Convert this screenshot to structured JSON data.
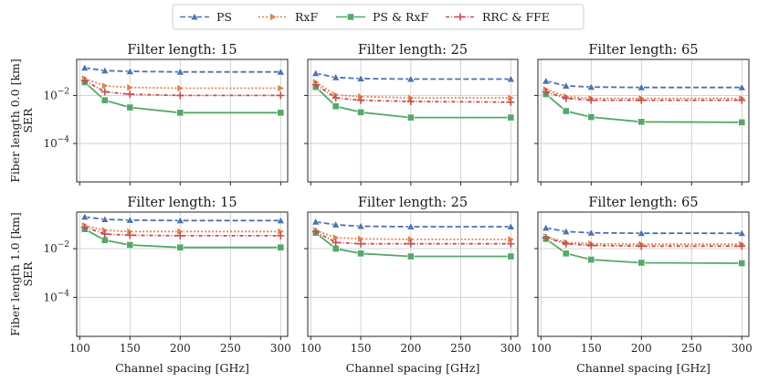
{
  "chart_data": {
    "type": "line",
    "legend": {
      "placement": "top-center",
      "entries": [
        {
          "name": "PS",
          "color": "#4c72b0",
          "dash": "6,3",
          "marker": "triangle-up"
        },
        {
          "name": "RxF",
          "color": "#dd8452",
          "dash": "2,2",
          "marker": "triangle-right"
        },
        {
          "name": "PS & RxF",
          "color": "#55a868",
          "dash": "",
          "marker": "square"
        },
        {
          "name": "RRC & FFE",
          "color": "#c44e52",
          "dash": "4,2,1,2",
          "marker": "plus"
        }
      ]
    },
    "x": [
      105,
      125,
      150,
      200,
      300
    ],
    "xlabel": "Channel spacing [GHz]",
    "ylabel": "SER",
    "xticks": [
      100,
      150,
      200,
      250,
      300
    ],
    "xtick_labels": [
      "100",
      "150",
      "200",
      "250",
      "300"
    ],
    "ytick_labels": [
      {
        "base": "10",
        "exp": "−2",
        "value": -2
      },
      {
        "base": "10",
        "exp": "−4",
        "value": -4
      }
    ],
    "xlim": [
      97,
      307
    ],
    "ylim_log10": [
      -5.6,
      -0.5
    ],
    "row_labels": [
      "Fiber length 0.0 [km]",
      "Fiber length 1.0 [km]"
    ],
    "panels": [
      {
        "title": "Filter length: 15",
        "row": 0,
        "col": 0,
        "series": [
          {
            "name": "PS",
            "log10": [
              -0.85,
              -0.97,
              -1.0,
              -1.02,
              -1.02
            ]
          },
          {
            "name": "RxF",
            "log10": [
              -1.3,
              -1.6,
              -1.67,
              -1.7,
              -1.7
            ]
          },
          {
            "name": "PS & RxF",
            "log10": [
              -1.45,
              -2.2,
              -2.5,
              -2.72,
              -2.72
            ]
          },
          {
            "name": "RRC & FFE",
            "log10": [
              -1.38,
              -1.85,
              -1.95,
              -2.0,
              -2.0
            ]
          }
        ]
      },
      {
        "title": "Filter length: 25",
        "row": 0,
        "col": 1,
        "series": [
          {
            "name": "PS",
            "log10": [
              -1.08,
              -1.25,
              -1.3,
              -1.32,
              -1.32
            ]
          },
          {
            "name": "RxF",
            "log10": [
              -1.45,
              -1.98,
              -2.05,
              -2.1,
              -2.1
            ]
          },
          {
            "name": "PS & RxF",
            "log10": [
              -1.65,
              -2.45,
              -2.7,
              -2.92,
              -2.92
            ]
          },
          {
            "name": "RRC & FFE",
            "log10": [
              -1.55,
              -2.1,
              -2.2,
              -2.25,
              -2.28
            ]
          }
        ]
      },
      {
        "title": "Filter length: 65",
        "row": 0,
        "col": 2,
        "series": [
          {
            "name": "PS",
            "log10": [
              -1.4,
              -1.6,
              -1.65,
              -1.67,
              -1.67
            ]
          },
          {
            "name": "RxF",
            "log10": [
              -1.75,
              -2.05,
              -2.12,
              -2.12,
              -2.12
            ]
          },
          {
            "name": "PS & RxF",
            "log10": [
              -1.95,
              -2.65,
              -2.9,
              -3.1,
              -3.12
            ]
          },
          {
            "name": "RRC & FFE",
            "log10": [
              -1.85,
              -2.12,
              -2.2,
              -2.2,
              -2.2
            ]
          }
        ]
      },
      {
        "title": "Filter length: 15",
        "row": 1,
        "col": 0,
        "series": [
          {
            "name": "PS",
            "log10": [
              -0.7,
              -0.8,
              -0.83,
              -0.85,
              -0.85
            ]
          },
          {
            "name": "RxF",
            "log10": [
              -1.05,
              -1.25,
              -1.3,
              -1.3,
              -1.3
            ]
          },
          {
            "name": "PS & RxF",
            "log10": [
              -1.2,
              -1.65,
              -1.85,
              -1.95,
              -1.95
            ]
          },
          {
            "name": "RRC & FFE",
            "log10": [
              -1.12,
              -1.4,
              -1.45,
              -1.47,
              -1.47
            ]
          }
        ]
      },
      {
        "title": "Filter length: 25",
        "row": 1,
        "col": 1,
        "series": [
          {
            "name": "PS",
            "log10": [
              -0.9,
              -1.02,
              -1.08,
              -1.1,
              -1.1
            ]
          },
          {
            "name": "RxF",
            "log10": [
              -1.25,
              -1.55,
              -1.6,
              -1.62,
              -1.62
            ]
          },
          {
            "name": "PS & RxF",
            "log10": [
              -1.35,
              -2.0,
              -2.2,
              -2.32,
              -2.32
            ]
          },
          {
            "name": "RRC & FFE",
            "log10": [
              -1.3,
              -1.75,
              -1.8,
              -1.8,
              -1.8
            ]
          }
        ]
      },
      {
        "title": "Filter length: 65",
        "row": 1,
        "col": 2,
        "series": [
          {
            "name": "PS",
            "log10": [
              -1.15,
              -1.3,
              -1.35,
              -1.37,
              -1.37
            ]
          },
          {
            "name": "RxF",
            "log10": [
              -1.5,
              -1.75,
              -1.8,
              -1.82,
              -1.82
            ]
          },
          {
            "name": "PS & RxF",
            "log10": [
              -1.6,
              -2.2,
              -2.45,
              -2.58,
              -2.6
            ]
          },
          {
            "name": "RRC & FFE",
            "log10": [
              -1.55,
              -1.8,
              -1.87,
              -1.9,
              -1.9
            ]
          }
        ]
      }
    ]
  }
}
